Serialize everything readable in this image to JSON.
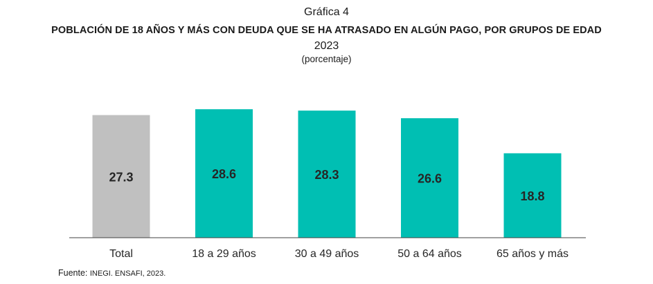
{
  "header": {
    "label": "Gráfica 4",
    "title": "POBLACIÓN DE 18 AÑOS Y MÁS CON DEUDA QUE SE HA ATRASADO EN ALGÚN PAGO, POR GRUPOS DE EDAD",
    "year": "2023",
    "unit": "(porcentaje)"
  },
  "source": {
    "prefix": "Fuente:",
    "text": "INEGI. ENSAFI, 2023."
  },
  "colors": {
    "total": "#c0c0c0",
    "group": "#00bfb3",
    "axis": "#404040",
    "label": "#262626"
  },
  "chart_data": {
    "type": "bar",
    "title": "POBLACIÓN DE 18 AÑOS Y MÁS CON DEUDA QUE SE HA ATRASADO EN ALGÚN PAGO, POR GRUPOS DE EDAD",
    "categories": [
      "Total",
      "18 a 29 años",
      "30 a 49 años",
      "50 a 64 años",
      "65 años y más"
    ],
    "values": [
      27.3,
      28.6,
      28.3,
      26.6,
      18.8
    ],
    "data_labels": [
      "27.3",
      "28.6",
      "28.3",
      "26.6",
      "18.8"
    ],
    "xlabel": "",
    "ylabel": "porcentaje",
    "ylim": [
      0,
      30
    ],
    "grid": false,
    "legend": "none"
  }
}
